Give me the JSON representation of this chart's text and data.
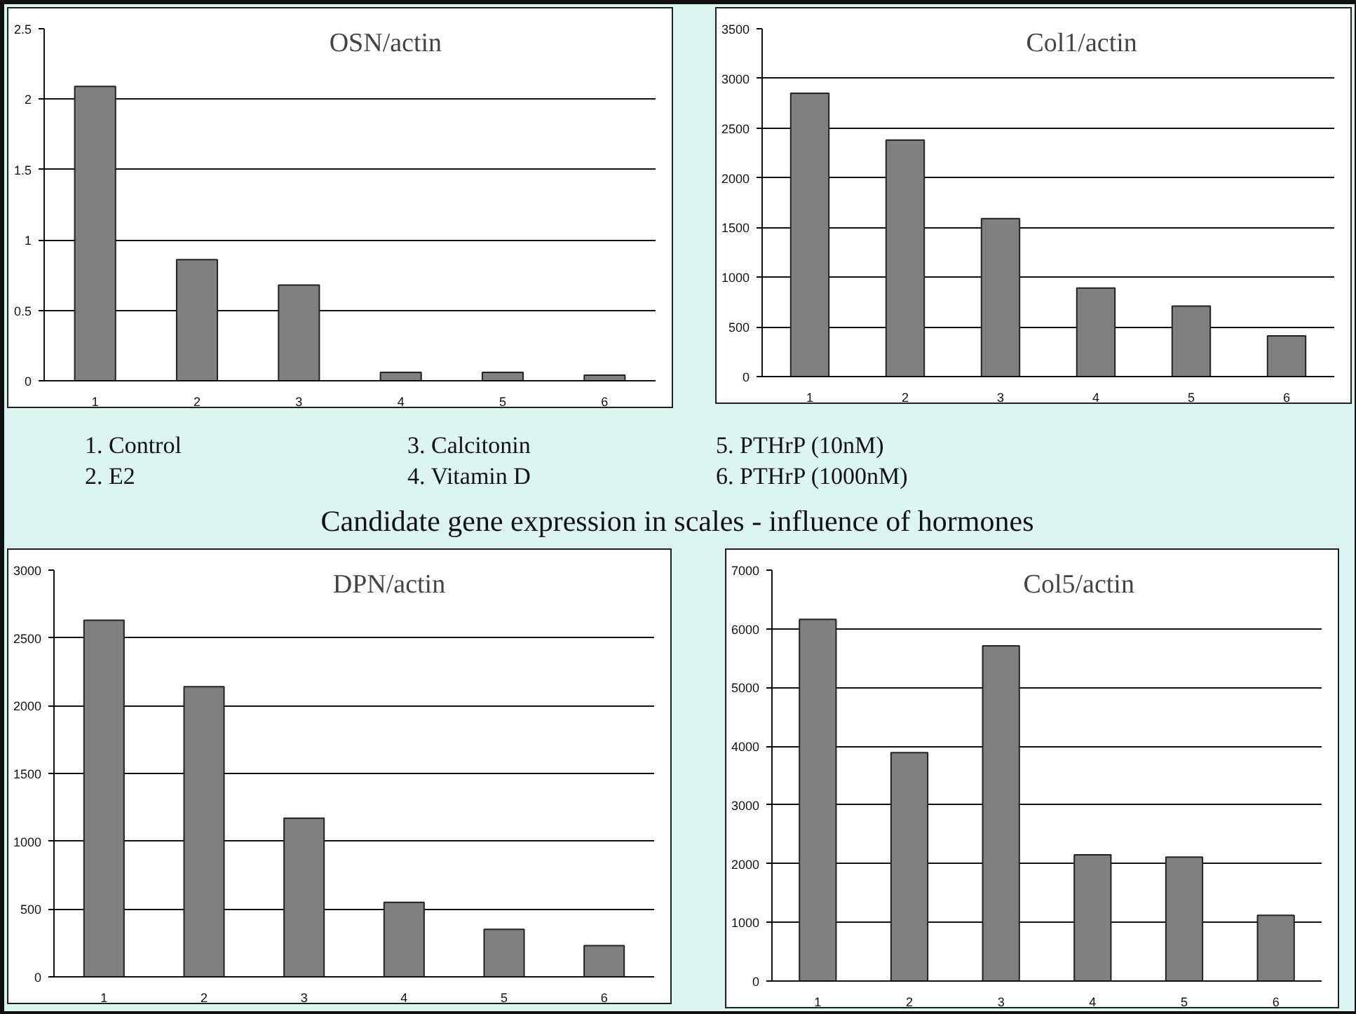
{
  "chart_data": [
    {
      "type": "bar",
      "title": "OSN/actin",
      "categories": [
        "1",
        "2",
        "3",
        "4",
        "5",
        "6"
      ],
      "values": [
        2.09,
        0.86,
        0.68,
        0.06,
        0.06,
        0.04
      ],
      "color": "#808080",
      "ylim": [
        0,
        2.5
      ],
      "yticks": [
        0,
        0.5,
        1,
        1.5,
        2,
        2.5
      ],
      "grid": "y"
    },
    {
      "type": "bar",
      "title": "Col1/actin",
      "categories": [
        "1",
        "2",
        "3",
        "4",
        "5",
        "6"
      ],
      "values": [
        2850,
        2380,
        1590,
        890,
        710,
        410
      ],
      "color": "#808080",
      "ylim": [
        0,
        3500
      ],
      "yticks": [
        0,
        500,
        1000,
        1500,
        2000,
        2500,
        3000,
        3500
      ],
      "grid": "y"
    },
    {
      "type": "other",
      "title": "Candidate gene expression in scales - influence of hormones",
      "annotations": [
        "1. Control",
        "2. E2",
        "3. Calcitonin",
        "4. Vitamin D",
        "5. PTHrP (10nM)",
        "6. PTHrP (1000nM)"
      ]
    },
    {
      "type": "bar",
      "title": "DPN/actin",
      "categories": [
        "1",
        "2",
        "3",
        "4",
        "5",
        "6"
      ],
      "values": [
        2630,
        2140,
        1170,
        550,
        350,
        230
      ],
      "color": "#808080",
      "ylim": [
        0,
        3000
      ],
      "yticks": [
        0,
        500,
        1000,
        1500,
        2000,
        2500,
        3000
      ],
      "grid": "y"
    },
    {
      "type": "bar",
      "title": "Col5/actin",
      "categories": [
        "1",
        "2",
        "3",
        "4",
        "5",
        "6"
      ],
      "values": [
        6160,
        3890,
        5710,
        2150,
        2110,
        1120
      ],
      "color": "#808080",
      "ylim": [
        0,
        7000
      ],
      "yticks": [
        0,
        1000,
        2000,
        3000,
        4000,
        5000,
        6000,
        7000
      ],
      "grid": "y"
    }
  ]
}
